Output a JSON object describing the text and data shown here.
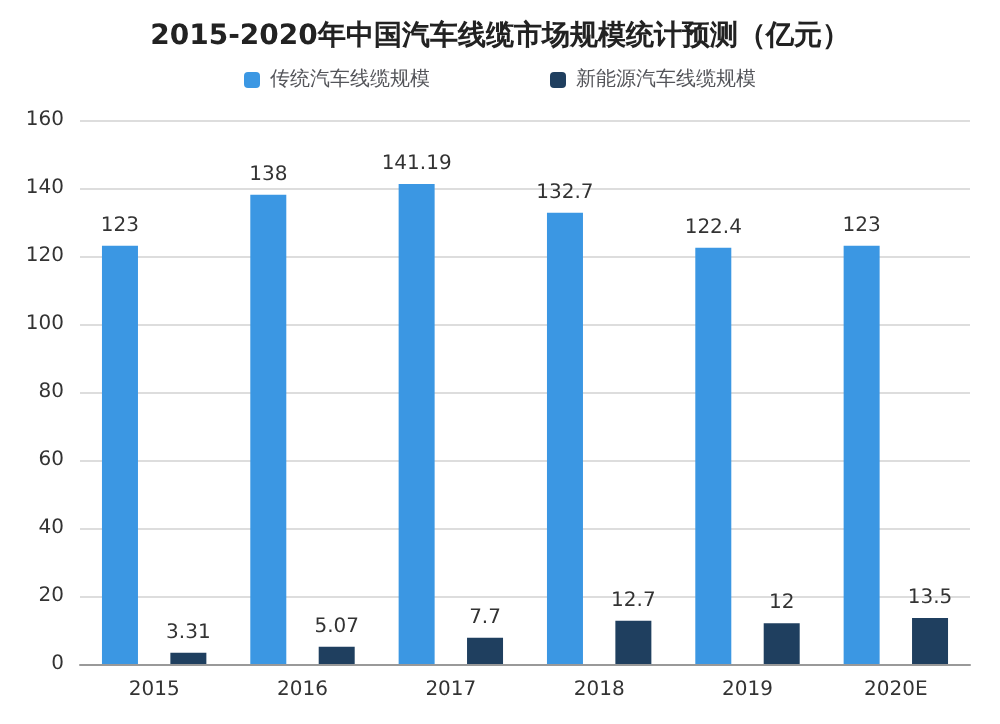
{
  "chart_data": {
    "type": "bar",
    "title": "2015-2020年中国汽车线缆市场规模统计预测（亿元）",
    "categories": [
      "2015",
      "2016",
      "2017",
      "2018",
      "2019",
      "2020E"
    ],
    "series": [
      {
        "name": "传统汽车线缆规模",
        "color": "#3b97e3",
        "values": [
          123,
          138,
          141.19,
          132.7,
          122.4,
          123
        ]
      },
      {
        "name": "新能源汽车线缆规模",
        "color": "#1f3f5f",
        "values": [
          3.31,
          5.07,
          7.7,
          12.7,
          12,
          13.5
        ]
      }
    ],
    "ylim": [
      0,
      160
    ],
    "yticks": [
      0,
      20,
      40,
      60,
      80,
      100,
      120,
      140,
      160
    ],
    "grid": "y",
    "legend": "top",
    "data_labels": true
  }
}
